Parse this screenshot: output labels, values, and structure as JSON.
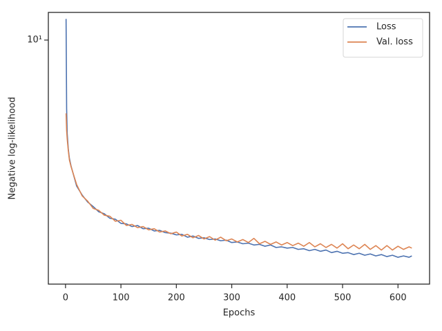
{
  "chart_data": {
    "type": "line",
    "x_label": "Epochs",
    "y_label": "Negative log-likelihood",
    "yscale": "log",
    "legend": "upper right",
    "xlim": [
      -31,
      657
    ],
    "xticks": [
      0,
      100,
      200,
      300,
      400,
      500,
      600
    ],
    "ylim": [
      1.63,
      12.28
    ],
    "yticks": [
      {
        "value": 10,
        "label": "10¹"
      }
    ],
    "x": [
      1,
      2,
      3,
      5,
      7,
      10,
      20,
      30,
      40,
      50,
      60,
      70,
      80,
      90,
      100,
      110,
      120,
      130,
      140,
      150,
      160,
      170,
      180,
      190,
      200,
      210,
      220,
      230,
      240,
      250,
      260,
      270,
      280,
      290,
      300,
      310,
      320,
      330,
      340,
      350,
      360,
      370,
      380,
      390,
      400,
      410,
      420,
      430,
      440,
      450,
      460,
      470,
      480,
      490,
      500,
      510,
      520,
      530,
      540,
      550,
      560,
      570,
      580,
      590,
      600,
      610,
      620,
      625
    ],
    "series": [
      {
        "name": "Loss",
        "color": "#4c72b0",
        "values": [
          11.7,
          6.0,
          5.0,
          4.45,
          4.15,
          3.92,
          3.38,
          3.16,
          3.0,
          2.9,
          2.79,
          2.75,
          2.66,
          2.64,
          2.56,
          2.55,
          2.5,
          2.52,
          2.46,
          2.47,
          2.42,
          2.43,
          2.39,
          2.38,
          2.35,
          2.36,
          2.31,
          2.33,
          2.29,
          2.3,
          2.27,
          2.28,
          2.25,
          2.26,
          2.22,
          2.23,
          2.2,
          2.21,
          2.18,
          2.19,
          2.16,
          2.18,
          2.14,
          2.15,
          2.13,
          2.14,
          2.11,
          2.12,
          2.09,
          2.11,
          2.08,
          2.1,
          2.06,
          2.08,
          2.05,
          2.06,
          2.03,
          2.05,
          2.02,
          2.04,
          2.01,
          2.03,
          2.0,
          2.02,
          1.99,
          2.01,
          1.99,
          2.01
        ]
      },
      {
        "name": "Val. loss",
        "color": "#dd8452",
        "values": [
          5.8,
          5.1,
          4.8,
          4.4,
          4.1,
          3.9,
          3.42,
          3.14,
          3.02,
          2.86,
          2.82,
          2.72,
          2.7,
          2.6,
          2.62,
          2.52,
          2.54,
          2.48,
          2.5,
          2.44,
          2.46,
          2.4,
          2.42,
          2.37,
          2.4,
          2.33,
          2.36,
          2.3,
          2.34,
          2.28,
          2.32,
          2.26,
          2.31,
          2.25,
          2.28,
          2.23,
          2.27,
          2.22,
          2.29,
          2.2,
          2.24,
          2.19,
          2.23,
          2.18,
          2.22,
          2.17,
          2.21,
          2.16,
          2.22,
          2.15,
          2.2,
          2.14,
          2.19,
          2.13,
          2.2,
          2.12,
          2.18,
          2.12,
          2.19,
          2.11,
          2.17,
          2.1,
          2.17,
          2.1,
          2.16,
          2.11,
          2.15,
          2.13
        ]
      }
    ]
  }
}
